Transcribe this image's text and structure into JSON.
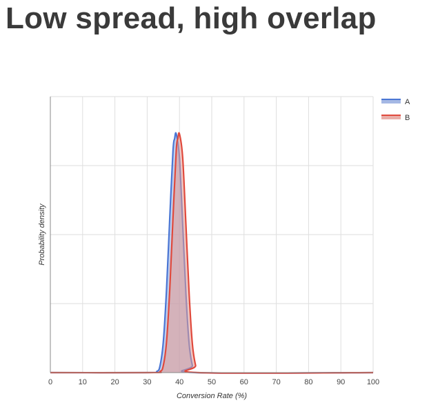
{
  "page": {
    "title": "Low spread, high overlap"
  },
  "chart_data": {
    "type": "area",
    "xlabel": "Conversion Rate (%)",
    "ylabel": "Probability density",
    "xlim": [
      0,
      100
    ],
    "x_ticks": [
      0,
      10,
      20,
      30,
      40,
      50,
      60,
      70,
      80,
      90,
      100
    ],
    "y_ticks_shown": false,
    "grid": true,
    "legend": "top-right",
    "series": [
      {
        "name": "A",
        "color": "#4a76d4",
        "fill": "#8ea6dd",
        "x": [
          0,
          30,
          33,
          34,
          35,
          36,
          37,
          38,
          38.5,
          39,
          40,
          41,
          42,
          43,
          44,
          45,
          100
        ],
        "density": [
          0,
          0,
          0.005,
          0.03,
          0.13,
          0.35,
          0.65,
          0.93,
          0.98,
          1.0,
          0.9,
          0.62,
          0.33,
          0.12,
          0.03,
          0,
          0
        ]
      },
      {
        "name": "B",
        "color": "#e0493c",
        "fill": "#e39a92",
        "x": [
          0,
          31,
          34,
          35,
          36,
          37,
          38,
          39,
          39.5,
          40,
          41,
          42,
          43,
          44,
          45,
          46,
          100
        ],
        "density": [
          0,
          0,
          0.005,
          0.03,
          0.13,
          0.35,
          0.65,
          0.93,
          0.98,
          1.0,
          0.9,
          0.62,
          0.33,
          0.12,
          0.03,
          0,
          0
        ]
      }
    ]
  }
}
